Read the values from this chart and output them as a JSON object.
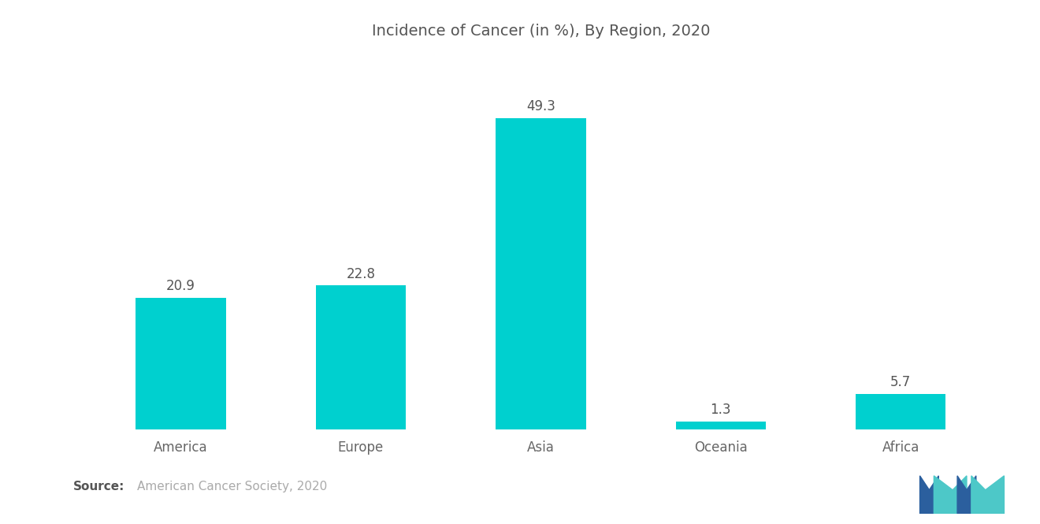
{
  "title": "Incidence of Cancer (in %), By Region, 2020",
  "categories": [
    "America",
    "Europe",
    "Asia",
    "Oceania",
    "Africa"
  ],
  "values": [
    20.9,
    22.8,
    49.3,
    1.3,
    5.7
  ],
  "bar_color": "#00D0CF",
  "background_color": "#ffffff",
  "title_fontsize": 14,
  "label_fontsize": 12,
  "value_fontsize": 12,
  "source_bold": "Source:",
  "source_text": "  American Cancer Society, 2020",
  "ylim": [
    0,
    58
  ],
  "logo_dark_blue": "#2B5F9E",
  "logo_teal": "#4DC8C8"
}
